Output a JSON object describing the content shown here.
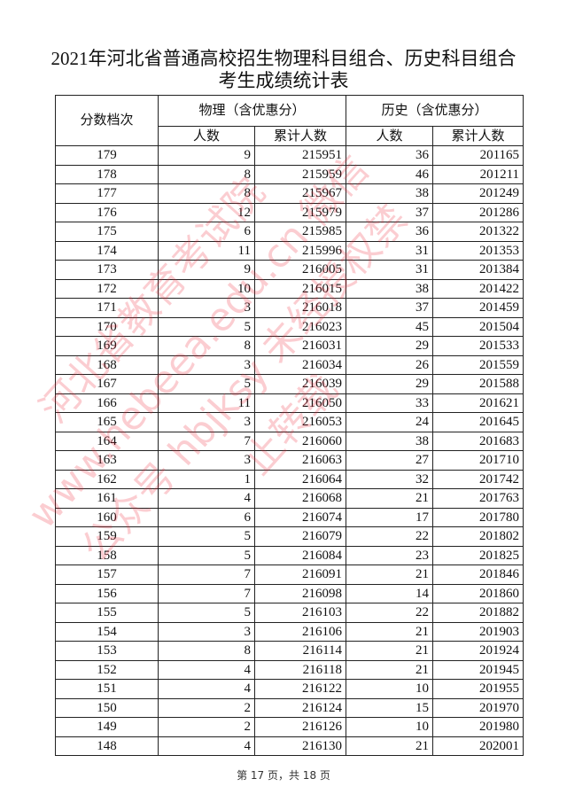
{
  "title_line1": "2021年河北省普通高校招生物理科目组合、历史科目组合",
  "title_line2": "考生成绩统计表",
  "headers": {
    "score": "分数档次",
    "physics": "物理（含优惠分）",
    "history": "历史（含优惠分）",
    "count": "人数",
    "cumulative": "累计人数"
  },
  "rows": [
    [
      "179",
      "9",
      "215951",
      "36",
      "201165"
    ],
    [
      "178",
      "8",
      "215959",
      "46",
      "201211"
    ],
    [
      "177",
      "8",
      "215967",
      "38",
      "201249"
    ],
    [
      "176",
      "12",
      "215979",
      "37",
      "201286"
    ],
    [
      "175",
      "6",
      "215985",
      "36",
      "201322"
    ],
    [
      "174",
      "11",
      "215996",
      "31",
      "201353"
    ],
    [
      "173",
      "9",
      "216005",
      "31",
      "201384"
    ],
    [
      "172",
      "10",
      "216015",
      "38",
      "201422"
    ],
    [
      "171",
      "3",
      "216018",
      "37",
      "201459"
    ],
    [
      "170",
      "5",
      "216023",
      "45",
      "201504"
    ],
    [
      "169",
      "8",
      "216031",
      "29",
      "201533"
    ],
    [
      "168",
      "3",
      "216034",
      "26",
      "201559"
    ],
    [
      "167",
      "5",
      "216039",
      "29",
      "201588"
    ],
    [
      "166",
      "11",
      "216050",
      "33",
      "201621"
    ],
    [
      "165",
      "3",
      "216053",
      "24",
      "201645"
    ],
    [
      "164",
      "7",
      "216060",
      "38",
      "201683"
    ],
    [
      "163",
      "3",
      "216063",
      "27",
      "201710"
    ],
    [
      "162",
      "1",
      "216064",
      "32",
      "201742"
    ],
    [
      "161",
      "4",
      "216068",
      "21",
      "201763"
    ],
    [
      "160",
      "6",
      "216074",
      "17",
      "201780"
    ],
    [
      "159",
      "5",
      "216079",
      "22",
      "201802"
    ],
    [
      "158",
      "5",
      "216084",
      "23",
      "201825"
    ],
    [
      "157",
      "7",
      "216091",
      "21",
      "201846"
    ],
    [
      "156",
      "7",
      "216098",
      "14",
      "201860"
    ],
    [
      "155",
      "5",
      "216103",
      "22",
      "201882"
    ],
    [
      "154",
      "3",
      "216106",
      "21",
      "201903"
    ],
    [
      "153",
      "8",
      "216114",
      "21",
      "201924"
    ],
    [
      "152",
      "4",
      "216118",
      "21",
      "201945"
    ],
    [
      "151",
      "4",
      "216122",
      "10",
      "201955"
    ],
    [
      "150",
      "2",
      "216124",
      "15",
      "201970"
    ],
    [
      "149",
      "2",
      "216126",
      "10",
      "201980"
    ],
    [
      "148",
      "4",
      "216130",
      "21",
      "202001"
    ]
  ],
  "watermark": "河北省教育考试院 www.hebeea.edu.cn 微信公众号 hbjksy 未经授权禁止转载",
  "footer": "第 17 页，共 18 页",
  "colors": {
    "watermark": "#e22233",
    "text": "#111111"
  }
}
